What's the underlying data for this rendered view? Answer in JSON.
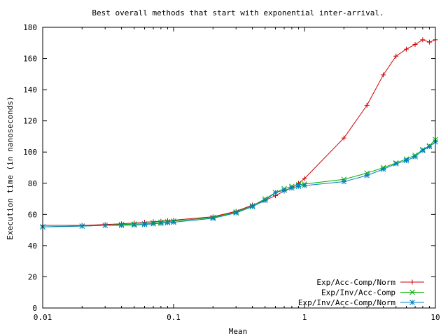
{
  "chart_data": {
    "type": "line",
    "title": "Best overall methods that start with exponential inter-arrival.",
    "xlabel": "Mean",
    "ylabel": "Execution time (in nanoseconds)",
    "xscale": "log",
    "xlim": [
      0.01,
      10
    ],
    "ylim": [
      0,
      180
    ],
    "xticks": [
      0.01,
      0.1,
      1,
      10
    ],
    "xtick_labels": [
      "0.01",
      "0.1",
      "1",
      "10"
    ],
    "yticks": [
      0,
      20,
      40,
      60,
      80,
      100,
      120,
      140,
      160,
      180
    ],
    "ytick_labels": [
      "0",
      "20",
      "40",
      "60",
      "80",
      "100",
      "120",
      "140",
      "160",
      "180"
    ],
    "grid": false,
    "legend_position": "bottom-right",
    "series": [
      {
        "name": "Exp/Acc-Comp/Norm",
        "color": "#cc0000",
        "marker": "plus",
        "x": [
          0.01,
          0.02,
          0.03,
          0.04,
          0.05,
          0.06,
          0.07,
          0.08,
          0.09,
          0.1,
          0.2,
          0.3,
          0.4,
          0.5,
          0.6,
          0.7,
          0.8,
          0.9,
          1,
          2,
          3,
          4,
          5,
          6,
          7,
          8,
          9,
          10
        ],
        "y": [
          53,
          53,
          53.5,
          54,
          54.5,
          55,
          55.3,
          55.6,
          56,
          56.3,
          58.5,
          62,
          66,
          69,
          72,
          75,
          77,
          80,
          83,
          109,
          130,
          149.5,
          161.5,
          166,
          169,
          172,
          170.5,
          172
        ]
      },
      {
        "name": "Exp/Inv/Acc-Comp",
        "color": "#00aa00",
        "marker": "cross",
        "x": [
          0.01,
          0.02,
          0.03,
          0.04,
          0.05,
          0.06,
          0.07,
          0.08,
          0.09,
          0.1,
          0.2,
          0.3,
          0.4,
          0.5,
          0.6,
          0.7,
          0.8,
          0.9,
          1,
          2,
          3,
          4,
          5,
          6,
          7,
          8,
          9,
          10
        ],
        "y": [
          52,
          52.5,
          53,
          53.5,
          53.8,
          54,
          54.5,
          55,
          55.3,
          55.7,
          58,
          61.5,
          65.5,
          70,
          74,
          76.5,
          78,
          79,
          79.5,
          82.5,
          86.5,
          90,
          93,
          95.5,
          98,
          101.5,
          104,
          108
        ]
      },
      {
        "name": "Exp/Inv/Acc-Comp/Norm",
        "color": "#0080c0",
        "marker": "star",
        "x": [
          0.01,
          0.02,
          0.03,
          0.04,
          0.05,
          0.06,
          0.07,
          0.08,
          0.09,
          0.1,
          0.2,
          0.3,
          0.4,
          0.5,
          0.6,
          0.7,
          0.8,
          0.9,
          1,
          2,
          3,
          4,
          5,
          6,
          7,
          8,
          9,
          10
        ],
        "y": [
          52,
          52.5,
          53,
          53,
          53.2,
          53.5,
          54,
          54.3,
          54.7,
          55,
          57.5,
          61,
          65,
          69,
          74,
          75.5,
          77,
          78,
          78.5,
          81,
          85,
          89,
          92.5,
          94.5,
          97,
          101,
          103.5,
          106.5
        ]
      }
    ]
  }
}
